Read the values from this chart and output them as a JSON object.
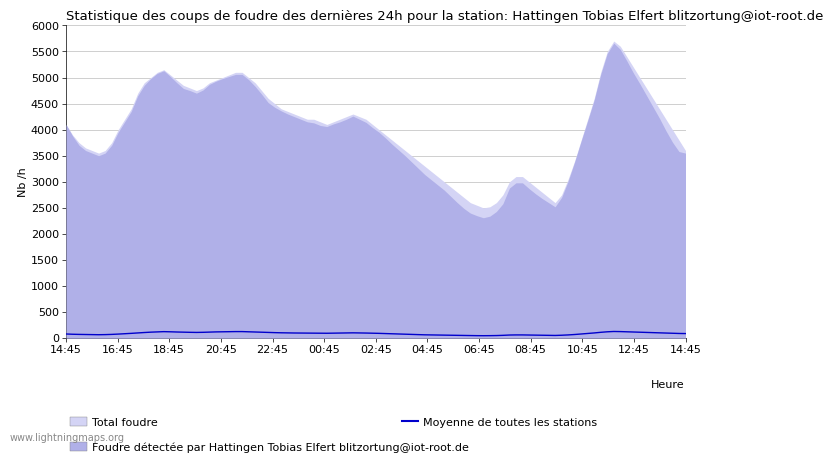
{
  "title": "Statistique des coups de foudre des dernières 24h pour la station: Hattingen Tobias Elfert blitzortung@iot-root.de",
  "ylabel": "Nb /h",
  "xlabel_right": "Heure",
  "watermark": "www.lightningmaps.org",
  "xtick_labels": [
    "14:45",
    "16:45",
    "18:45",
    "20:45",
    "22:45",
    "00:45",
    "02:45",
    "04:45",
    "06:45",
    "08:45",
    "10:45",
    "12:45",
    "14:45"
  ],
  "ylim": [
    0,
    6000
  ],
  "yticks": [
    0,
    500,
    1000,
    1500,
    2000,
    2500,
    3000,
    3500,
    4000,
    4500,
    5000,
    5500,
    6000
  ],
  "total_foudre_color": "#d4d4f5",
  "station_foudre_color": "#b0b0e8",
  "moyenne_color": "#0000cc",
  "bg_color": "#ffffff",
  "plot_bg_color": "#ffffff",
  "grid_color": "#c8c8c8",
  "title_fontsize": 9.5,
  "legend_fontsize": 8,
  "tick_fontsize": 8,
  "ylabel_fontsize": 8,
  "total_foudre_values": [
    4100,
    3900,
    3750,
    3650,
    3600,
    3550,
    3600,
    3750,
    4000,
    4200,
    4400,
    4700,
    4900,
    5000,
    5100,
    5150,
    5050,
    4950,
    4850,
    4800,
    4750,
    4800,
    4900,
    4950,
    5000,
    5050,
    5100,
    5100,
    5000,
    4900,
    4750,
    4600,
    4500,
    4400,
    4350,
    4300,
    4250,
    4200,
    4200,
    4150,
    4100,
    4150,
    4200,
    4250,
    4300,
    4250,
    4200,
    4100,
    4000,
    3900,
    3800,
    3700,
    3600,
    3500,
    3400,
    3300,
    3200,
    3100,
    3000,
    2900,
    2800,
    2700,
    2600,
    2550,
    2500,
    2520,
    2600,
    2750,
    3000,
    3100,
    3100,
    3000,
    2900,
    2800,
    2700,
    2600,
    2750,
    3050,
    3400,
    3800,
    4200,
    4600,
    5100,
    5500,
    5700,
    5600,
    5400,
    5200,
    5000,
    4800,
    4600,
    4400,
    4200,
    4000,
    3800,
    3600
  ],
  "station_foudre_values": [
    4100,
    3880,
    3700,
    3600,
    3550,
    3500,
    3550,
    3700,
    3950,
    4150,
    4350,
    4650,
    4850,
    4980,
    5080,
    5130,
    5020,
    4900,
    4790,
    4750,
    4700,
    4760,
    4870,
    4930,
    4980,
    5020,
    5060,
    5060,
    4960,
    4830,
    4680,
    4520,
    4430,
    4360,
    4300,
    4250,
    4200,
    4150,
    4130,
    4080,
    4060,
    4110,
    4150,
    4200,
    4260,
    4200,
    4140,
    4040,
    3950,
    3840,
    3720,
    3610,
    3500,
    3380,
    3260,
    3140,
    3040,
    2940,
    2840,
    2720,
    2600,
    2490,
    2400,
    2350,
    2310,
    2340,
    2430,
    2580,
    2880,
    2980,
    2980,
    2870,
    2770,
    2680,
    2600,
    2520,
    2700,
    3010,
    3380,
    3780,
    4170,
    4570,
    5060,
    5460,
    5660,
    5540,
    5320,
    5090,
    4880,
    4660,
    4440,
    4220,
    3980,
    3760,
    3580,
    3550
  ],
  "moyenne_values": [
    80,
    75,
    72,
    70,
    68,
    66,
    68,
    72,
    78,
    85,
    92,
    100,
    108,
    115,
    120,
    125,
    122,
    118,
    115,
    112,
    110,
    112,
    116,
    120,
    122,
    124,
    126,
    126,
    122,
    118,
    114,
    110,
    106,
    103,
    101,
    99,
    98,
    97,
    96,
    95,
    94,
    96,
    98,
    100,
    102,
    100,
    98,
    95,
    92,
    88,
    84,
    80,
    76,
    72,
    68,
    64,
    62,
    60,
    58,
    56,
    54,
    52,
    50,
    48,
    47,
    48,
    50,
    54,
    60,
    62,
    62,
    60,
    58,
    56,
    54,
    52,
    56,
    62,
    70,
    80,
    90,
    100,
    112,
    122,
    128,
    126,
    122,
    118,
    114,
    110,
    106,
    102,
    98,
    94,
    90,
    88
  ]
}
